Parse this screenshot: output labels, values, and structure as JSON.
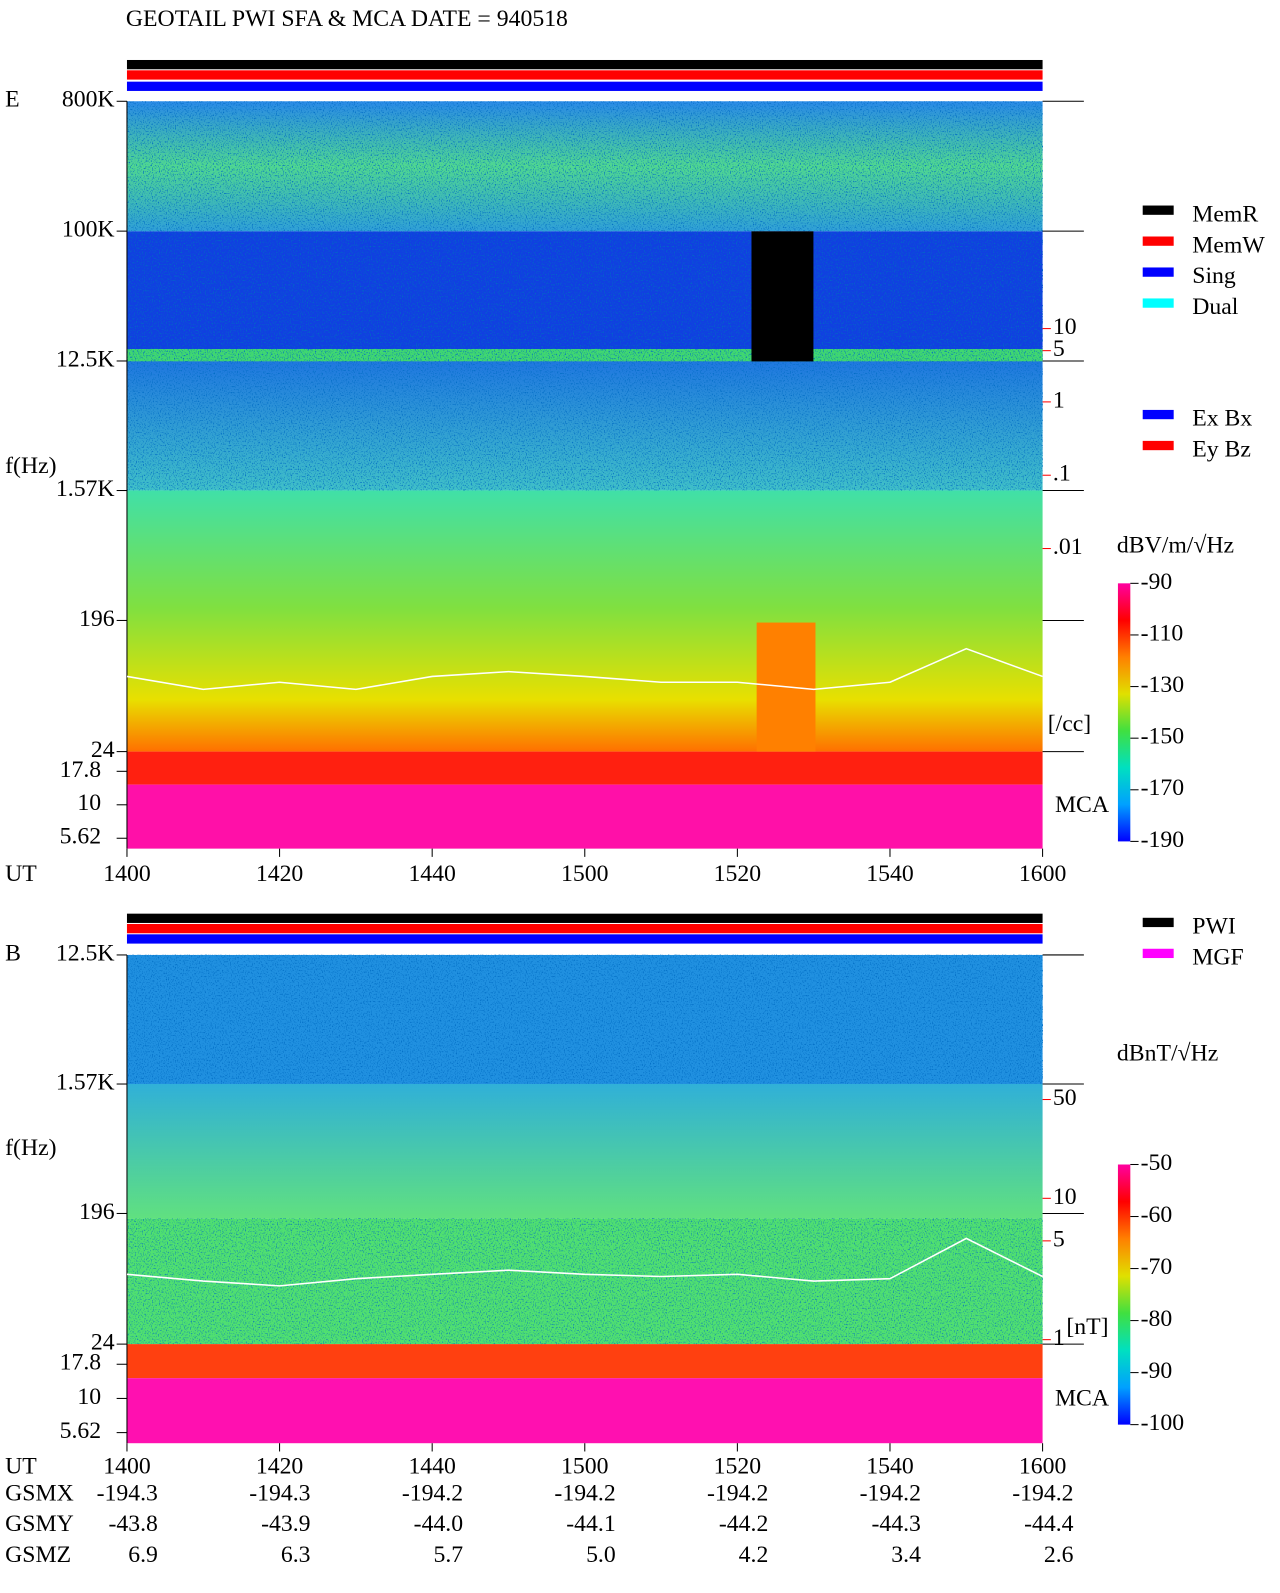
{
  "header": {
    "title": "GEOTAIL  PWI SFA & MCA   DATE = 940518"
  },
  "chart_data": [
    {
      "type": "spectrogram",
      "panel": "E",
      "y_label": "f(Hz)",
      "x_label": "UT",
      "log_y": true,
      "ylim": [
        24,
        800000
      ],
      "yticks": [
        {
          "value": 800000,
          "label": "800K"
        },
        {
          "value": 100000,
          "label": "100K"
        },
        {
          "value": 12500,
          "label": "12.5K"
        },
        {
          "value": 1570,
          "label": "1.57K"
        },
        196,
        24
      ],
      "mca_label": "MCA",
      "mca_ylim": [
        4.7,
        25
      ],
      "mca_ticks": [
        17.8,
        10,
        5.62
      ],
      "categories": [
        "1400",
        "1420",
        "1440",
        "1500",
        "1520",
        "1540",
        "1600"
      ],
      "colorbar": {
        "label": "dBV/m/√Hz",
        "lim": [
          -190,
          -90
        ],
        "ticks": [
          -90,
          -110,
          -130,
          -150,
          -170,
          -190
        ],
        "colors": [
          "#0000ff",
          "#00a0ff",
          "#00e0c0",
          "#40e040",
          "#e0e000",
          "#ff8000",
          "#ff0000",
          "#ff00a0"
        ]
      },
      "density": {
        "unit": "[/cc]",
        "color": "#ff0000",
        "line_color": "#ffffff",
        "log": true,
        "ylim": [
          1.7e-05,
          12600
        ],
        "ticks": [
          10,
          5,
          1,
          {
            "value": 0.1,
            "label": ".1"
          },
          {
            "value": 0.01,
            "label": ".01"
          }
        ],
        "values": [
          0.00018,
          0.00012,
          0.00015,
          0.00012,
          0.00018,
          0.00021,
          0.00018,
          0.00015,
          0.00015,
          0.00012,
          0.00015,
          0.00043,
          0.00018
        ]
      },
      "legends": [
        [
          {
            "name": "MemR",
            "color": "#000000"
          },
          {
            "name": "MemW",
            "color": "#ff0000"
          },
          {
            "name": "Sing",
            "color": "#0000ff"
          },
          {
            "name": "Dual",
            "color": "#00ffff"
          }
        ],
        [
          {
            "name": "Ex Bx",
            "color": "#0000ff"
          },
          {
            "name": "Ey Bz",
            "color": "#ff0000"
          }
        ]
      ]
    },
    {
      "type": "spectrogram",
      "panel": "B",
      "y_label": "f(Hz)",
      "x_label": "UT",
      "log_y": true,
      "ylim": [
        24,
        12500
      ],
      "yticks": [
        {
          "value": 12500,
          "label": "12.5K"
        },
        {
          "value": 1570,
          "label": "1.57K"
        },
        196,
        24
      ],
      "mca_label": "MCA",
      "mca_ylim": [
        4.7,
        25
      ],
      "mca_ticks": [
        17.8,
        10,
        5.62
      ],
      "categories": [
        "1400",
        "1420",
        "1440",
        "1500",
        "1520",
        "1540",
        "1600"
      ],
      "colorbar": {
        "label": "dBnT/√Hz",
        "lim": [
          -100,
          -50
        ],
        "ticks": [
          -50,
          -60,
          -70,
          -80,
          -90,
          -100
        ],
        "colors": [
          "#0000ff",
          "#00a0ff",
          "#00e0c0",
          "#40e040",
          "#e0e000",
          "#ff8000",
          "#ff0000",
          "#ff00a0"
        ]
      },
      "density": {
        "unit": "[nT]",
        "color": "#ff0000",
        "line_color": "#ffffff",
        "log": true,
        "ylim": [
          0.93,
          527
        ],
        "ticks": [
          50,
          10,
          5,
          1
        ],
        "values": [
          2.9,
          2.6,
          2.4,
          2.7,
          2.9,
          3.1,
          2.9,
          2.8,
          2.9,
          2.6,
          2.7,
          5.2,
          2.8
        ]
      },
      "legends": [
        [
          {
            "name": "PWI",
            "color": "#000000"
          },
          {
            "name": "MGF",
            "color": "#ff00ff"
          }
        ]
      ]
    }
  ],
  "orbit": {
    "labels": [
      "GSMX",
      "GSMY",
      "GSMZ"
    ],
    "rows": [
      [
        "-194.3",
        "-194.3",
        "-194.2",
        "-194.2",
        "-194.2",
        "-194.2",
        "-194.2"
      ],
      [
        "-43.8",
        "-43.9",
        "-44.0",
        "-44.1",
        "-44.2",
        "-44.3",
        "-44.4"
      ],
      [
        "6.9",
        "6.3",
        "5.7",
        "5.0",
        "4.2",
        "3.4",
        "2.6"
      ]
    ]
  }
}
